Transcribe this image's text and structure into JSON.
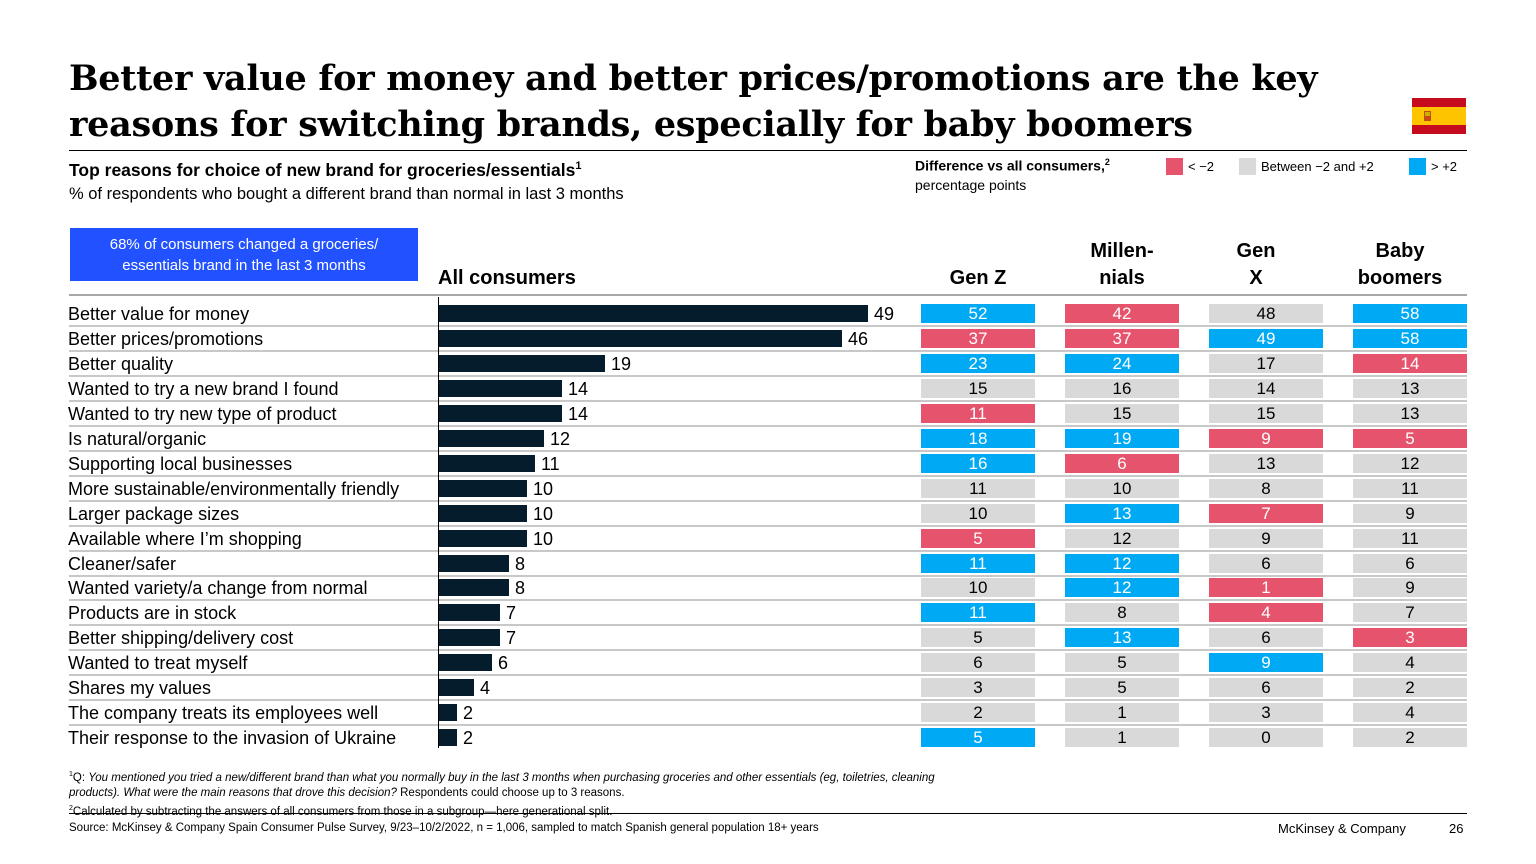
{
  "header": {
    "title": "Better value for money and better prices/promotions are the key reasons for switching brands, especially for baby boomers",
    "country_flag_icon": "spain-flag-icon"
  },
  "subtitle": {
    "main": "Top reasons for choice of new brand for groceries/essentials",
    "main_sup": "1",
    "secondary": "% of respondents who bought a different brand than normal in last 3 months"
  },
  "legend": {
    "title": "Difference vs all consumers,",
    "title_sup": "2",
    "subtitle": "percentage points",
    "items": [
      {
        "key": "neg",
        "label": "< −2",
        "color": "#e5546c"
      },
      {
        "key": "neu",
        "label": "Between −2 and +2",
        "color": "#d9d9d9"
      },
      {
        "key": "pos",
        "label": "> +2",
        "color": "#00a9f4"
      }
    ]
  },
  "callout": {
    "text": "68% of consumers changed a groceries/ essentials brand in the last 3 months",
    "color": "#2251ff"
  },
  "columns": {
    "all": "All consumers",
    "genz": "Gen Z",
    "millennials": "Millen-\nnials",
    "genx": "Gen\nX",
    "boomers": "Baby\nboomers"
  },
  "chart_data": {
    "type": "bar",
    "orientation": "horizontal",
    "title": "Top reasons for choice of new brand for groceries/essentials",
    "xlabel": "",
    "ylabel": "% of respondents who bought a different brand than normal in last 3 months",
    "bar_color": "#051c2c",
    "xlim": [
      0,
      49
    ],
    "categories": [
      "Better value for money",
      "Better prices/promotions",
      "Better quality",
      "Wanted to try a new brand I found",
      "Wanted to try new type of product",
      "Is natural/organic",
      "Supporting local businesses",
      "More sustainable/environmentally friendly",
      "Larger package sizes",
      "Available where I’m shopping",
      "Cleaner/safer",
      "Wanted variety/a change from normal",
      "Products are in stock",
      "Better shipping/delivery cost",
      "Wanted to treat myself",
      "Shares my values",
      "The company treats its employees well",
      "Their response to the invasion of Ukraine"
    ],
    "series": [
      {
        "name": "All consumers",
        "values": [
          49,
          46,
          19,
          14,
          14,
          12,
          11,
          10,
          10,
          10,
          8,
          8,
          7,
          7,
          6,
          4,
          2,
          2
        ]
      },
      {
        "name": "Gen Z",
        "values": [
          52,
          37,
          23,
          15,
          11,
          18,
          16,
          11,
          10,
          5,
          11,
          10,
          11,
          5,
          6,
          3,
          2,
          5
        ],
        "status": [
          "pos",
          "neg",
          "pos",
          "neu",
          "neg",
          "pos",
          "pos",
          "neu",
          "neu",
          "neg",
          "pos",
          "neu",
          "pos",
          "neu",
          "neu",
          "neu",
          "neu",
          "pos"
        ]
      },
      {
        "name": "Millennials",
        "values": [
          42,
          37,
          24,
          16,
          15,
          19,
          6,
          10,
          13,
          12,
          12,
          12,
          8,
          13,
          5,
          5,
          1,
          1
        ],
        "status": [
          "neg",
          "neg",
          "pos",
          "neu",
          "neu",
          "pos",
          "neg",
          "neu",
          "pos",
          "neu",
          "pos",
          "pos",
          "neu",
          "pos",
          "neu",
          "neu",
          "neu",
          "neu"
        ]
      },
      {
        "name": "Gen X",
        "values": [
          48,
          49,
          17,
          14,
          15,
          9,
          13,
          8,
          7,
          9,
          6,
          1,
          4,
          6,
          9,
          6,
          3,
          0
        ],
        "status": [
          "neu",
          "pos",
          "neu",
          "neu",
          "neu",
          "neg",
          "neu",
          "neu",
          "neg",
          "neu",
          "neu",
          "neg",
          "neg",
          "neu",
          "pos",
          "neu",
          "neu",
          "neu"
        ]
      },
      {
        "name": "Baby boomers",
        "values": [
          58,
          58,
          14,
          13,
          13,
          5,
          12,
          11,
          9,
          11,
          6,
          9,
          7,
          3,
          4,
          2,
          4,
          2
        ],
        "status": [
          "pos",
          "pos",
          "neg",
          "neu",
          "neu",
          "neg",
          "neu",
          "neu",
          "neu",
          "neu",
          "neu",
          "neu",
          "neu",
          "neg",
          "neu",
          "neu",
          "neu",
          "neu"
        ]
      }
    ]
  },
  "footnotes": {
    "note1_sup": "1",
    "note1_prefix": "Q: ",
    "note1_question": "You mentioned you tried a new/different brand than what you normally buy in the last 3 months when purchasing groceries and other essentials (eg, toiletries, cleaning products). What were the main reasons that drove this decision?",
    "note1_suffix": " Respondents could choose up to 3 reasons.",
    "note2_sup": "2",
    "note2": "Calculated by subtracting the answers of all consumers from those in a subgroup—here generational split."
  },
  "footer": {
    "source": "Source: McKinsey & Company Spain Consumer Pulse Survey, 9/23–10/2/2022, n = 1,006, sampled to match Spanish general population 18+ years",
    "brand": "McKinsey & Company",
    "page_number": "26"
  }
}
